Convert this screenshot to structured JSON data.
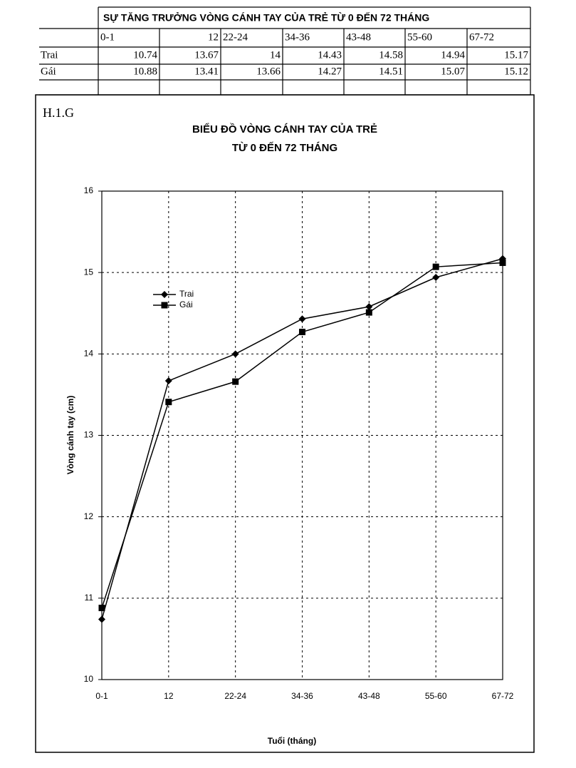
{
  "table": {
    "title": "SỰ TĂNG TRƯỞNG VÒNG CÁNH TAY CỦA TRẺ TỪ 0 ĐẾN 72 THÁNG",
    "header": [
      "0-1",
      "12",
      "22-24",
      "34-36",
      "43-48",
      "55-60",
      "67-72"
    ],
    "rows": [
      [
        "Trai",
        10.74,
        13.67,
        14,
        14.43,
        14.58,
        14.94,
        15.17
      ],
      [
        "Gái",
        10.88,
        13.41,
        13.66,
        14.27,
        14.51,
        15.07,
        15.12
      ]
    ]
  },
  "figure_label": "H.1.G",
  "chart_data": {
    "type": "line",
    "title": "BIỂU ĐỒ VÒNG CÁNH TAY CỦA TRẺ",
    "subtitle": "TỪ 0 ĐẾN 72 THÁNG",
    "x_label": "Tuổi (tháng)",
    "y_label": "Vòng cánh tay (cm)",
    "categories": [
      "0-1",
      "12",
      "22-24",
      "34-36",
      "43-48",
      "55-60",
      "67-72"
    ],
    "series": [
      {
        "name": "Trai",
        "color": "#000000",
        "marker": "diamond",
        "values": [
          10.74,
          13.67,
          14,
          14.43,
          14.58,
          14.94,
          15.17
        ]
      },
      {
        "name": "Gái",
        "color": "#000000",
        "marker": "square",
        "values": [
          10.88,
          13.41,
          13.66,
          14.27,
          14.51,
          15.07,
          15.12
        ]
      }
    ],
    "ylim": [
      10,
      16
    ],
    "yticks": [
      10,
      11,
      12,
      13,
      14,
      15,
      16
    ],
    "grid": true,
    "grid_style": "dotted"
  }
}
